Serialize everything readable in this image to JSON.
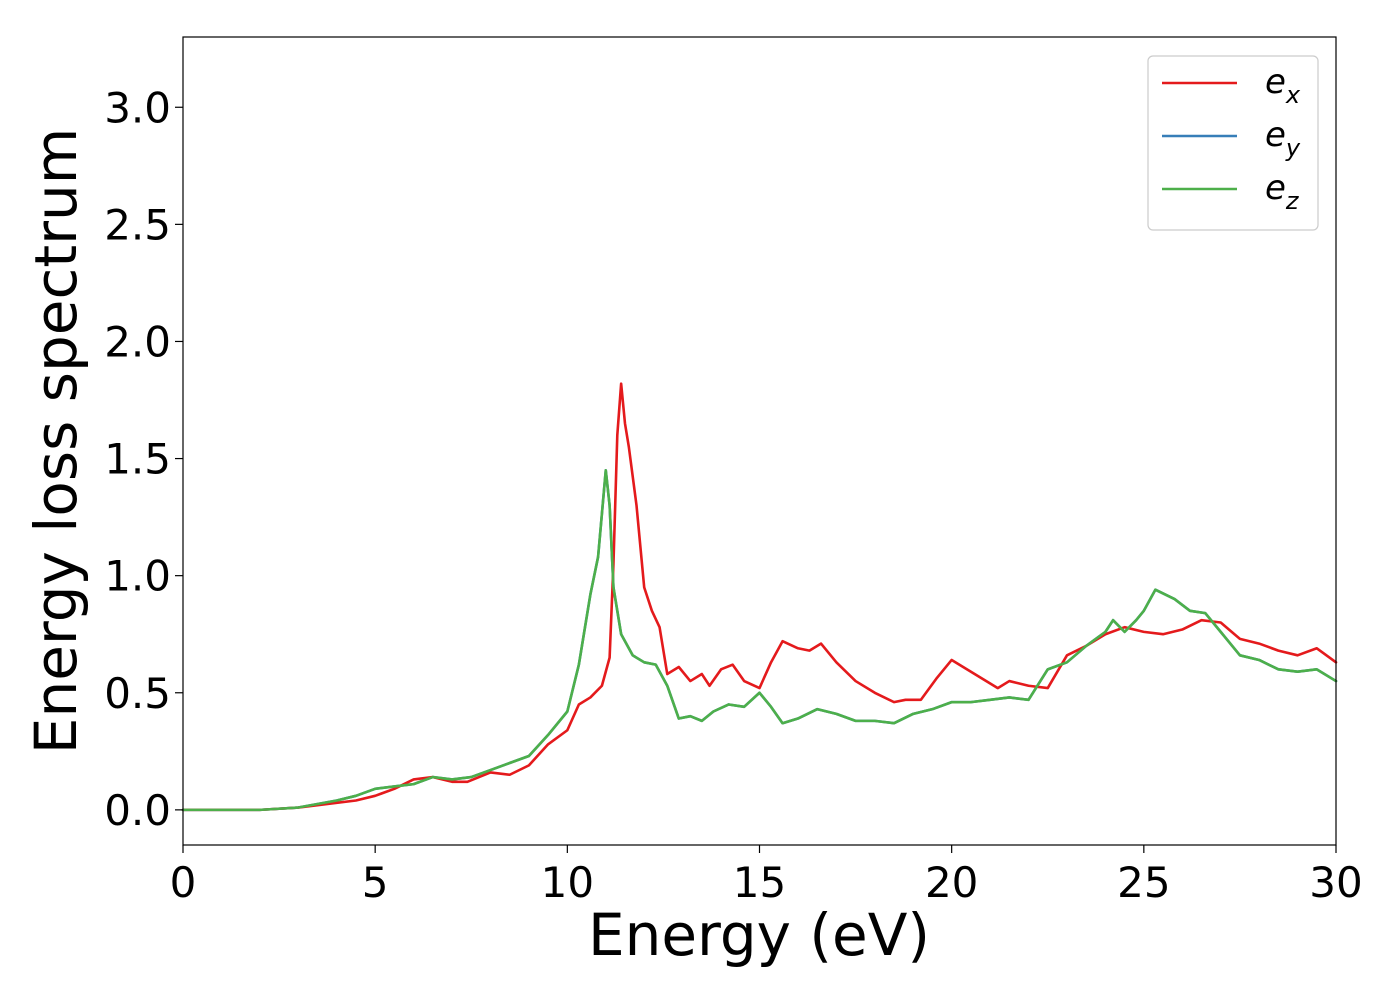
{
  "chart_data": {
    "type": "line",
    "xlabel": "Energy (eV)",
    "ylabel": "Energy loss spectrum",
    "xlim": [
      0,
      30
    ],
    "ylim": [
      -0.15,
      3.3
    ],
    "xticks": [
      0,
      5,
      10,
      15,
      20,
      25,
      30
    ],
    "xtick_labels": [
      "0",
      "5",
      "10",
      "15",
      "20",
      "25",
      "30"
    ],
    "yticks": [
      0.0,
      0.5,
      1.0,
      1.5,
      2.0,
      2.5,
      3.0
    ],
    "ytick_labels": [
      "0.0",
      "0.5",
      "1.0",
      "1.5",
      "2.0",
      "2.5",
      "3.0"
    ],
    "grid": false,
    "legend_position": "top-right",
    "series": [
      {
        "name": "e",
        "subscript": "x",
        "color": "#e41a1c",
        "points": [
          [
            0,
            0
          ],
          [
            2,
            0
          ],
          [
            3,
            0.01
          ],
          [
            4,
            0.03
          ],
          [
            4.5,
            0.04
          ],
          [
            5,
            0.06
          ],
          [
            5.5,
            0.09
          ],
          [
            6,
            0.13
          ],
          [
            6.5,
            0.14
          ],
          [
            7,
            0.12
          ],
          [
            7.4,
            0.12
          ],
          [
            8,
            0.16
          ],
          [
            8.5,
            0.15
          ],
          [
            9,
            0.19
          ],
          [
            9.5,
            0.28
          ],
          [
            10,
            0.34
          ],
          [
            10.3,
            0.45
          ],
          [
            10.6,
            0.48
          ],
          [
            10.9,
            0.53
          ],
          [
            11.1,
            0.65
          ],
          [
            11.2,
            1.05
          ],
          [
            11.3,
            1.6
          ],
          [
            11.4,
            1.82
          ],
          [
            11.5,
            1.65
          ],
          [
            11.6,
            1.55
          ],
          [
            11.8,
            1.3
          ],
          [
            12,
            0.95
          ],
          [
            12.2,
            0.85
          ],
          [
            12.4,
            0.78
          ],
          [
            12.6,
            0.58
          ],
          [
            12.9,
            0.61
          ],
          [
            13.2,
            0.55
          ],
          [
            13.5,
            0.58
          ],
          [
            13.7,
            0.53
          ],
          [
            14,
            0.6
          ],
          [
            14.3,
            0.62
          ],
          [
            14.6,
            0.55
          ],
          [
            15,
            0.52
          ],
          [
            15.3,
            0.63
          ],
          [
            15.6,
            0.72
          ],
          [
            16,
            0.69
          ],
          [
            16.3,
            0.68
          ],
          [
            16.6,
            0.71
          ],
          [
            17,
            0.63
          ],
          [
            17.5,
            0.55
          ],
          [
            18,
            0.5
          ],
          [
            18.5,
            0.46
          ],
          [
            18.8,
            0.47
          ],
          [
            19.2,
            0.47
          ],
          [
            19.6,
            0.56
          ],
          [
            20,
            0.64
          ],
          [
            20.4,
            0.6
          ],
          [
            20.8,
            0.56
          ],
          [
            21.2,
            0.52
          ],
          [
            21.5,
            0.55
          ],
          [
            22,
            0.53
          ],
          [
            22.5,
            0.52
          ],
          [
            23,
            0.66
          ],
          [
            23.5,
            0.7
          ],
          [
            24,
            0.75
          ],
          [
            24.5,
            0.78
          ],
          [
            25,
            0.76
          ],
          [
            25.5,
            0.75
          ],
          [
            26,
            0.77
          ],
          [
            26.5,
            0.81
          ],
          [
            27,
            0.8
          ],
          [
            27.5,
            0.73
          ],
          [
            28,
            0.71
          ],
          [
            28.5,
            0.68
          ],
          [
            29,
            0.66
          ],
          [
            29.5,
            0.69
          ],
          [
            30,
            0.63
          ]
        ]
      },
      {
        "name": "e",
        "subscript": "y",
        "color": "#377eb8",
        "points": [
          [
            0,
            0
          ],
          [
            2,
            0
          ],
          [
            3,
            0.01
          ],
          [
            4,
            0.04
          ],
          [
            4.5,
            0.06
          ],
          [
            5,
            0.09
          ],
          [
            5.5,
            0.1
          ],
          [
            6,
            0.11
          ],
          [
            6.5,
            0.14
          ],
          [
            7,
            0.13
          ],
          [
            7.5,
            0.14
          ],
          [
            8,
            0.17
          ],
          [
            8.5,
            0.2
          ],
          [
            9,
            0.23
          ],
          [
            9.5,
            0.32
          ],
          [
            10,
            0.42
          ],
          [
            10.3,
            0.62
          ],
          [
            10.6,
            0.92
          ],
          [
            10.8,
            1.08
          ],
          [
            11,
            1.45
          ],
          [
            11.1,
            1.3
          ],
          [
            11.2,
            0.95
          ],
          [
            11.4,
            0.75
          ],
          [
            11.7,
            0.66
          ],
          [
            12,
            0.63
          ],
          [
            12.3,
            0.62
          ],
          [
            12.6,
            0.53
          ],
          [
            12.9,
            0.39
          ],
          [
            13.2,
            0.4
          ],
          [
            13.5,
            0.38
          ],
          [
            13.8,
            0.42
          ],
          [
            14.2,
            0.45
          ],
          [
            14.6,
            0.44
          ],
          [
            15,
            0.5
          ],
          [
            15.3,
            0.44
          ],
          [
            15.6,
            0.37
          ],
          [
            16,
            0.39
          ],
          [
            16.5,
            0.43
          ],
          [
            17,
            0.41
          ],
          [
            17.5,
            0.38
          ],
          [
            18,
            0.38
          ],
          [
            18.5,
            0.37
          ],
          [
            19,
            0.41
          ],
          [
            19.5,
            0.43
          ],
          [
            20,
            0.46
          ],
          [
            20.5,
            0.46
          ],
          [
            21,
            0.47
          ],
          [
            21.5,
            0.48
          ],
          [
            22,
            0.47
          ],
          [
            22.5,
            0.6
          ],
          [
            23,
            0.63
          ],
          [
            23.5,
            0.7
          ],
          [
            24,
            0.76
          ],
          [
            24.2,
            0.81
          ],
          [
            24.5,
            0.76
          ],
          [
            24.8,
            0.81
          ],
          [
            25,
            0.85
          ],
          [
            25.3,
            0.94
          ],
          [
            25.8,
            0.9
          ],
          [
            26.2,
            0.85
          ],
          [
            26.6,
            0.84
          ],
          [
            27,
            0.76
          ],
          [
            27.5,
            0.66
          ],
          [
            28,
            0.64
          ],
          [
            28.5,
            0.6
          ],
          [
            29,
            0.59
          ],
          [
            29.5,
            0.6
          ],
          [
            30,
            0.55
          ]
        ]
      },
      {
        "name": "e",
        "subscript": "z",
        "color": "#4daf4a",
        "points": [
          [
            0,
            0
          ],
          [
            2,
            0
          ],
          [
            3,
            0.01
          ],
          [
            4,
            0.04
          ],
          [
            4.5,
            0.06
          ],
          [
            5,
            0.09
          ],
          [
            5.5,
            0.1
          ],
          [
            6,
            0.11
          ],
          [
            6.5,
            0.14
          ],
          [
            7,
            0.13
          ],
          [
            7.5,
            0.14
          ],
          [
            8,
            0.17
          ],
          [
            8.5,
            0.2
          ],
          [
            9,
            0.23
          ],
          [
            9.5,
            0.32
          ],
          [
            10,
            0.42
          ],
          [
            10.3,
            0.62
          ],
          [
            10.6,
            0.92
          ],
          [
            10.8,
            1.08
          ],
          [
            11,
            1.45
          ],
          [
            11.1,
            1.3
          ],
          [
            11.2,
            0.95
          ],
          [
            11.4,
            0.75
          ],
          [
            11.7,
            0.66
          ],
          [
            12,
            0.63
          ],
          [
            12.3,
            0.62
          ],
          [
            12.6,
            0.53
          ],
          [
            12.9,
            0.39
          ],
          [
            13.2,
            0.4
          ],
          [
            13.5,
            0.38
          ],
          [
            13.8,
            0.42
          ],
          [
            14.2,
            0.45
          ],
          [
            14.6,
            0.44
          ],
          [
            15,
            0.5
          ],
          [
            15.3,
            0.44
          ],
          [
            15.6,
            0.37
          ],
          [
            16,
            0.39
          ],
          [
            16.5,
            0.43
          ],
          [
            17,
            0.41
          ],
          [
            17.5,
            0.38
          ],
          [
            18,
            0.38
          ],
          [
            18.5,
            0.37
          ],
          [
            19,
            0.41
          ],
          [
            19.5,
            0.43
          ],
          [
            20,
            0.46
          ],
          [
            20.5,
            0.46
          ],
          [
            21,
            0.47
          ],
          [
            21.5,
            0.48
          ],
          [
            22,
            0.47
          ],
          [
            22.5,
            0.6
          ],
          [
            23,
            0.63
          ],
          [
            23.5,
            0.7
          ],
          [
            24,
            0.76
          ],
          [
            24.2,
            0.81
          ],
          [
            24.5,
            0.76
          ],
          [
            24.8,
            0.81
          ],
          [
            25,
            0.85
          ],
          [
            25.3,
            0.94
          ],
          [
            25.8,
            0.9
          ],
          [
            26.2,
            0.85
          ],
          [
            26.6,
            0.84
          ],
          [
            27,
            0.76
          ],
          [
            27.5,
            0.66
          ],
          [
            28,
            0.64
          ],
          [
            28.5,
            0.6
          ],
          [
            29,
            0.59
          ],
          [
            29.5,
            0.6
          ],
          [
            30,
            0.55
          ]
        ]
      }
    ]
  }
}
